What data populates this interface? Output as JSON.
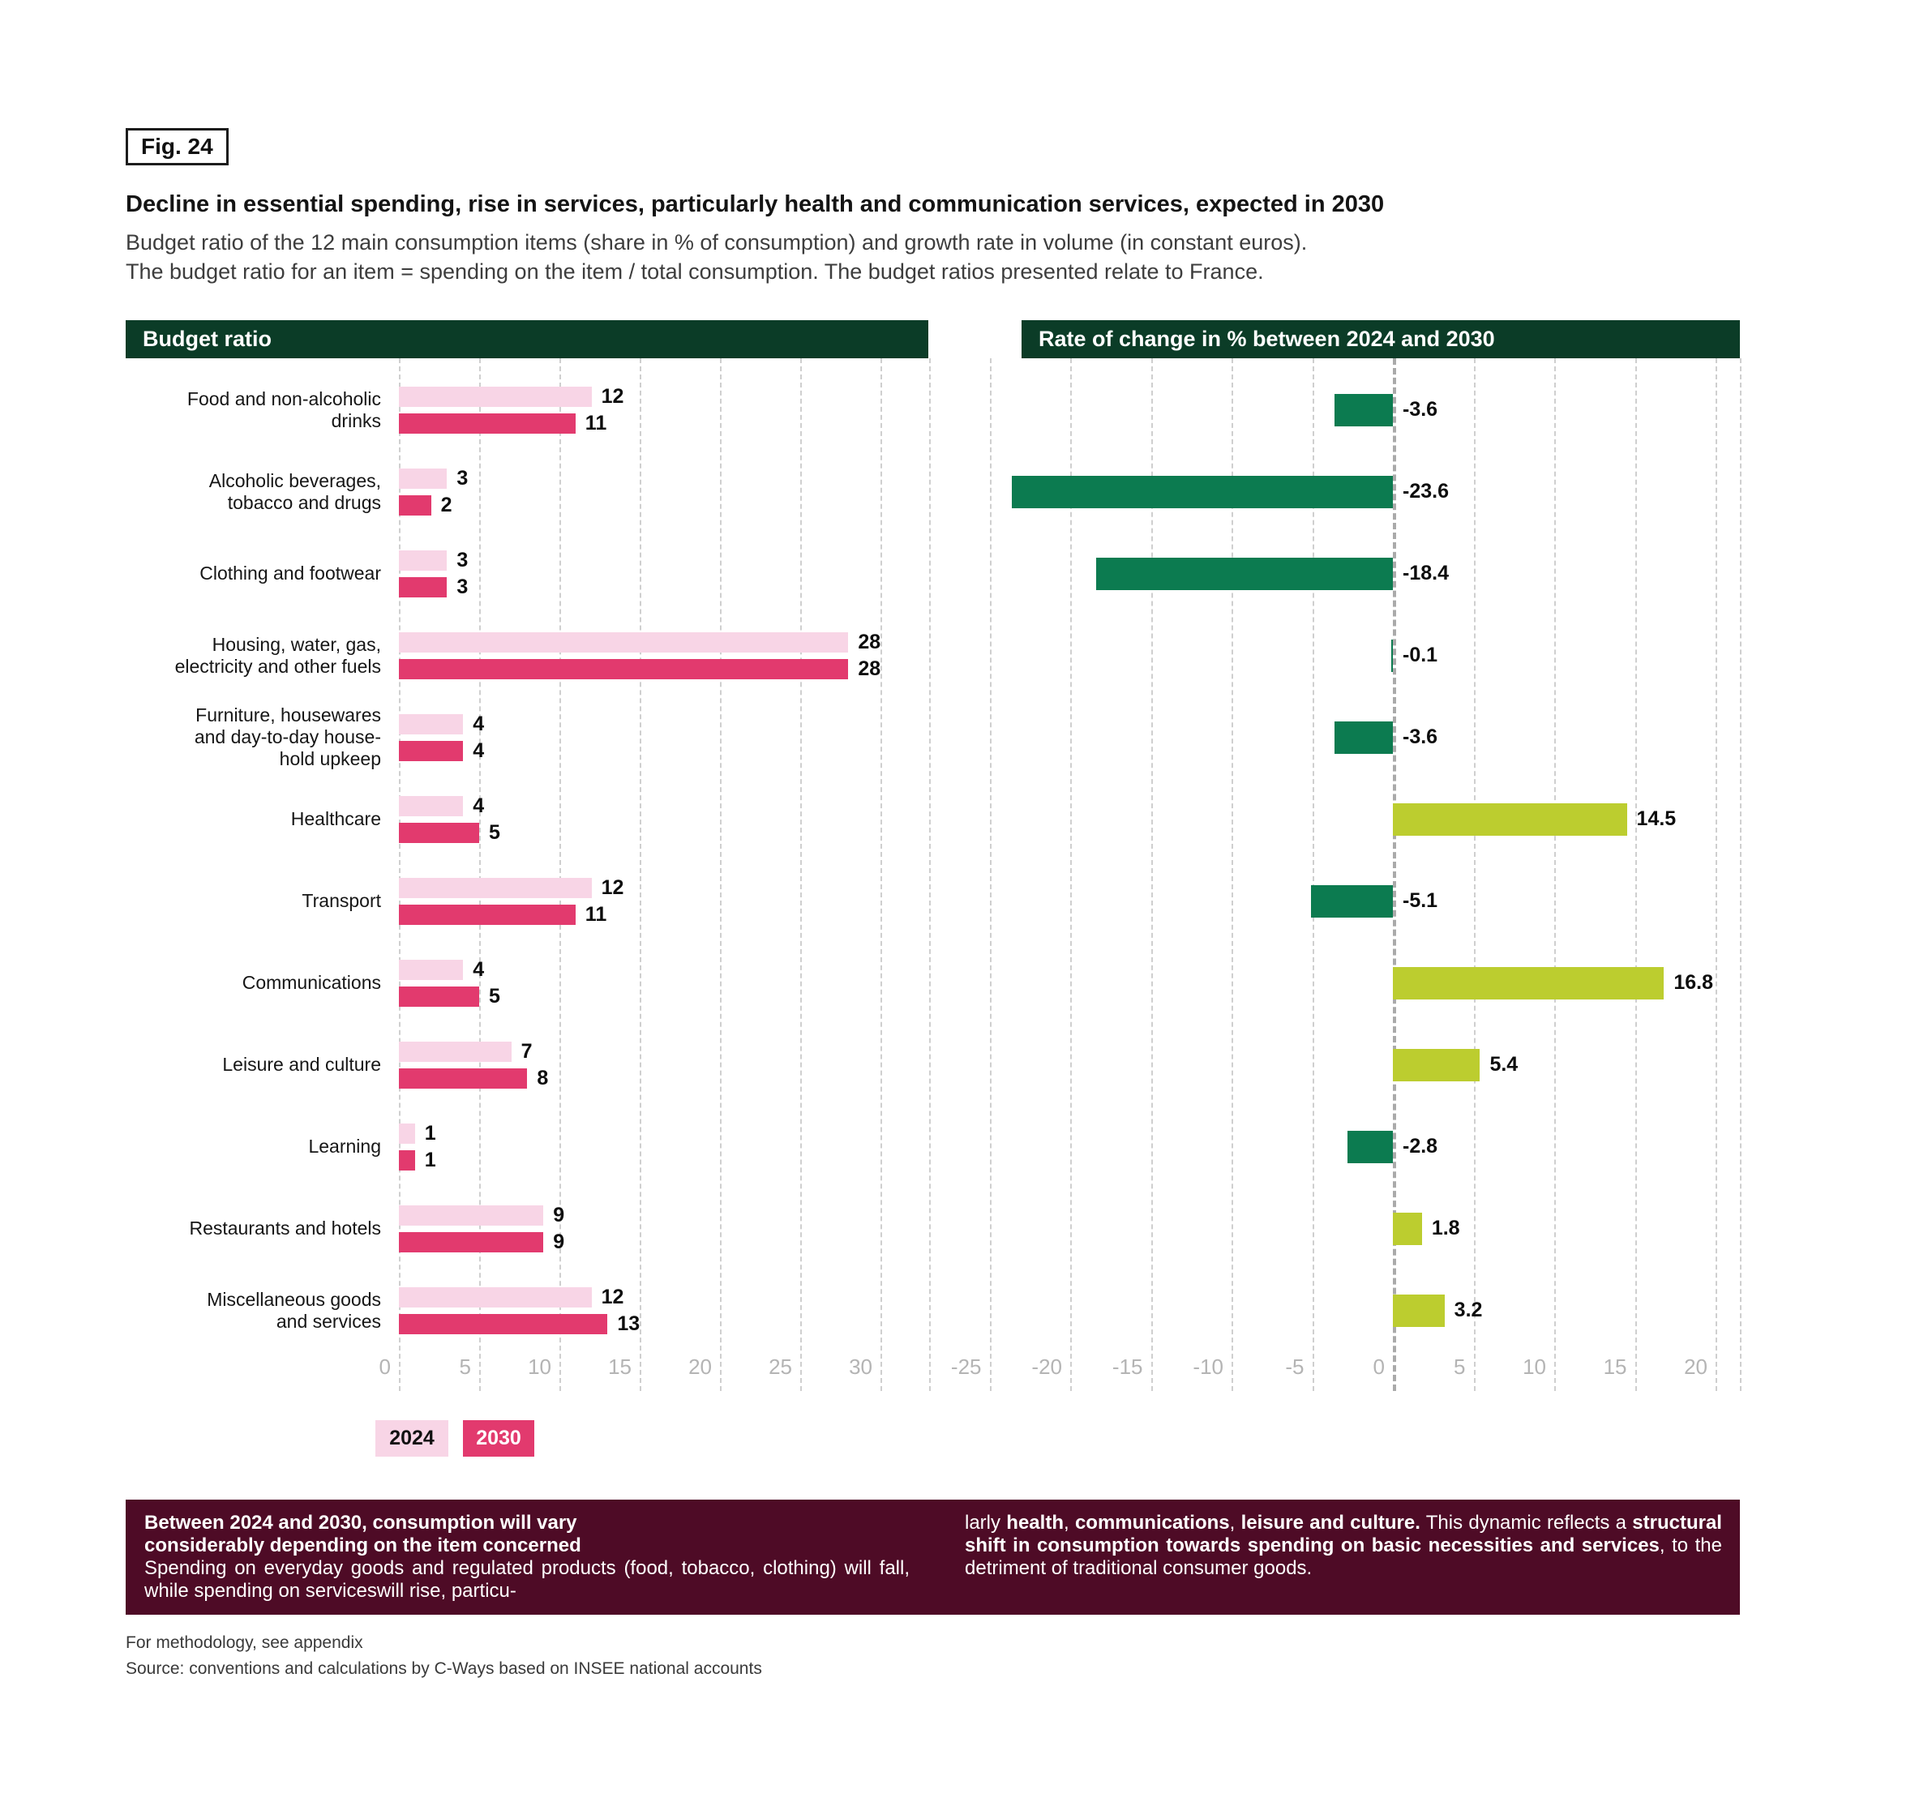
{
  "figure": {
    "badge": "Fig. 24",
    "title": "Decline in essential spending, rise in services, particularly health and communication services, expected in 2030",
    "subtitle": "Budget ratio of the 12 main consumption items (share in % of consumption) and growth rate in volume (in constant euros).\nThe budget ratio for an item = spending on the item / total consumption. The budget ratios presented relate to France."
  },
  "panels": {
    "left_header": "Budget ratio",
    "right_header": "Rate of change in % between 2024 and 2030"
  },
  "legend": {
    "label_2024": "2024",
    "label_2030": "2030"
  },
  "colors": {
    "header_green": "#0b3c27",
    "pink_2024": "#f8d5e6",
    "pink_2030": "#e23a6e",
    "negative_green": "#0c7b50",
    "positive_yellow_green": "#bccd2f",
    "summary_maroon": "#4e0b26",
    "gridline_gray": "#cfcfcf",
    "zero_line_gray": "#aaaaaa",
    "axis_text_gray": "#b4b4b4"
  },
  "chart_data": [
    {
      "type": "bar",
      "orientation": "horizontal",
      "title": "Budget ratio",
      "categories": [
        "Food and non-alcoholic\ndrinks",
        "Alcoholic beverages,\ntobacco and drugs",
        "Clothing and footwear",
        "Housing, water, gas,\nelectricity and other fuels",
        "Furniture, housewares\nand day-to-day house-\nhold upkeep",
        "Healthcare",
        "Transport",
        "Communications",
        "Leisure and culture",
        "Learning",
        "Restaurants and hotels",
        "Miscellaneous goods\nand services"
      ],
      "series": [
        {
          "name": "2024",
          "values": [
            12,
            3,
            3,
            28,
            4,
            4,
            12,
            4,
            7,
            1,
            9,
            12
          ]
        },
        {
          "name": "2030",
          "values": [
            11,
            2,
            3,
            28,
            4,
            5,
            11,
            5,
            8,
            1,
            9,
            13
          ]
        }
      ],
      "xlim": [
        0,
        33
      ],
      "xticks": [
        0,
        5,
        10,
        15,
        20,
        25,
        30
      ],
      "grid": "dashed-vertical",
      "legend_position": "bottom"
    },
    {
      "type": "bar",
      "orientation": "horizontal",
      "title": "Rate of change in % between 2024 and 2030",
      "categories": [
        "Food and non-alcoholic drinks",
        "Alcoholic beverages, tobacco and drugs",
        "Clothing and footwear",
        "Housing, water, gas, electricity and other fuels",
        "Furniture, housewares and day-to-day household upkeep",
        "Healthcare",
        "Transport",
        "Communications",
        "Leisure and culture",
        "Learning",
        "Restaurants and hotels",
        "Miscellaneous goods and services"
      ],
      "values": [
        -3.6,
        -23.6,
        -18.4,
        -0.1,
        -3.6,
        14.5,
        -5.1,
        16.8,
        5.4,
        -2.8,
        1.8,
        3.2
      ],
      "value_labels": [
        "-3.6",
        "-23.6",
        "-18.4",
        "-0.1",
        "-3.6",
        "14.5",
        "-5.1",
        "16.8",
        "5.4",
        "-2.8",
        "1.8",
        "3.2"
      ],
      "xlim": [
        -27,
        22
      ],
      "xticks": [
        -25,
        -20,
        -15,
        -10,
        -5,
        0,
        5,
        10,
        15,
        20
      ],
      "grid": "dashed-vertical",
      "zero_line": "dashed-gray"
    }
  ],
  "summary_box": {
    "heading": "Between 2024 and 2030, consumption will vary\nconsiderably depending on the item concerned",
    "left_body": "Spending on everyday goods and regulated products (food, tobacco, clothing) will fall, while spending on serviceswill rise, particu-",
    "right_segments": [
      {
        "text": "larly ",
        "bold": false
      },
      {
        "text": "health",
        "bold": true
      },
      {
        "text": ", ",
        "bold": false
      },
      {
        "text": "communications",
        "bold": true
      },
      {
        "text": ", ",
        "bold": false
      },
      {
        "text": "leisure and culture.",
        "bold": true
      },
      {
        "text": " This dynamic reflects a ",
        "bold": false
      },
      {
        "text": "structural shift in consumption towards spending on basic necessities and services",
        "bold": true
      },
      {
        "text": ", to the detriment of traditional consumer goods.",
        "bold": false
      }
    ]
  },
  "footnotes": [
    "For methodology, see appendix",
    "Source: conventions and calculations by C-Ways based on INSEE national accounts"
  ]
}
